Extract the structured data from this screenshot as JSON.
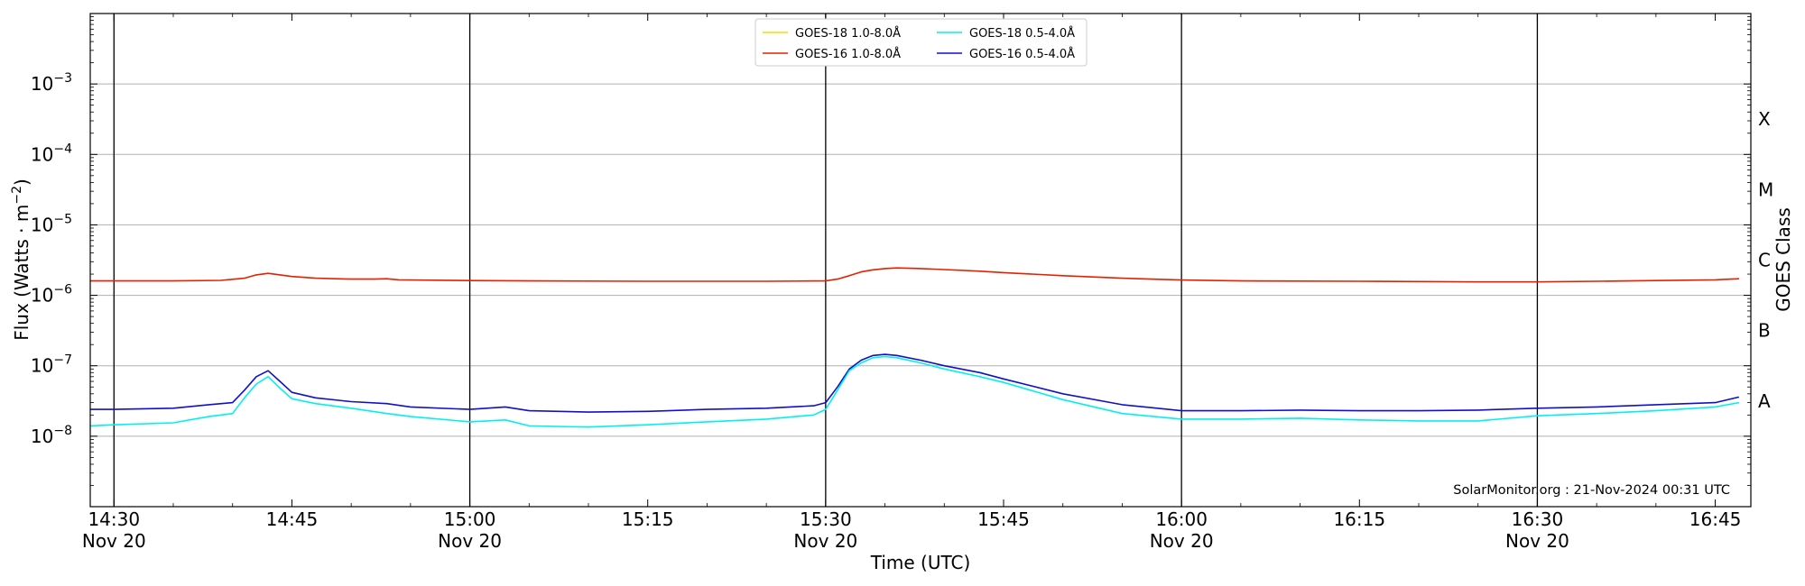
{
  "chart_data": {
    "type": "line",
    "title": "",
    "xlabel": "Time (UTC)",
    "ylabel": "Flux (Watts · m",
    "ylabel_sup": "−2",
    "ylabel_tail": ")",
    "right_label": "GOES Class",
    "y_scale": "log",
    "ylim": [
      1e-09,
      0.01
    ],
    "xlim": [
      "2024-11-20 14:28",
      "2024-11-20 16:48"
    ],
    "grid": "horizontal at decades 1e-8..1e-3",
    "y_ticks": [
      {
        "value": 1e-08,
        "base": "10",
        "exp": "−8"
      },
      {
        "value": 1e-07,
        "base": "10",
        "exp": "−7"
      },
      {
        "value": 1e-06,
        "base": "10",
        "exp": "−6"
      },
      {
        "value": 1e-05,
        "base": "10",
        "exp": "−5"
      },
      {
        "value": 0.0001,
        "base": "10",
        "exp": "−4"
      },
      {
        "value": 0.001,
        "base": "10",
        "exp": "−3"
      }
    ],
    "x_ticks": [
      {
        "time": "14:30",
        "label": "14:30",
        "sub": "Nov 20",
        "vline": true
      },
      {
        "time": "14:45",
        "label": "14:45",
        "sub": "",
        "vline": false
      },
      {
        "time": "15:00",
        "label": "15:00",
        "sub": "Nov 20",
        "vline": true
      },
      {
        "time": "15:15",
        "label": "15:15",
        "sub": "",
        "vline": false
      },
      {
        "time": "15:30",
        "label": "15:30",
        "sub": "Nov 20",
        "vline": true
      },
      {
        "time": "15:45",
        "label": "15:45",
        "sub": "",
        "vline": false
      },
      {
        "time": "16:00",
        "label": "16:00",
        "sub": "Nov 20",
        "vline": true
      },
      {
        "time": "16:15",
        "label": "16:15",
        "sub": "",
        "vline": false
      },
      {
        "time": "16:30",
        "label": "16:30",
        "sub": "Nov 20",
        "vline": true
      },
      {
        "time": "16:45",
        "label": "16:45",
        "sub": "",
        "vline": false
      }
    ],
    "goes_classes": [
      {
        "label": "A",
        "value": 3.16e-08
      },
      {
        "label": "B",
        "value": 3.16e-07
      },
      {
        "label": "C",
        "value": 3.16e-06
      },
      {
        "label": "M",
        "value": 3.16e-05
      },
      {
        "label": "X",
        "value": 0.000316
      }
    ],
    "legend_position": "top-center",
    "legend": [
      {
        "name": "GOES-18 1.0-8.0Å",
        "color": "#ffd700"
      },
      {
        "name": "GOES-16 1.0-8.0Å",
        "color": "#e52000"
      },
      {
        "name": "GOES-18 0.5-4.0Å",
        "color": "#00f0f0"
      },
      {
        "name": "GOES-16 0.5-4.0Å",
        "color": "#1010cc"
      }
    ],
    "series": [
      {
        "name": "GOES-16 1.0-8.0Å",
        "color": "#e52000",
        "points": [
          [
            "14:28",
            1.6e-06
          ],
          [
            "14:35",
            1.6e-06
          ],
          [
            "14:39",
            1.63e-06
          ],
          [
            "14:41",
            1.75e-06
          ],
          [
            "14:42",
            1.95e-06
          ],
          [
            "14:43",
            2.05e-06
          ],
          [
            "14:44",
            1.95e-06
          ],
          [
            "14:45",
            1.85e-06
          ],
          [
            "14:47",
            1.75e-06
          ],
          [
            "14:50",
            1.7e-06
          ],
          [
            "14:52",
            1.7e-06
          ],
          [
            "14:53",
            1.72e-06
          ],
          [
            "14:54",
            1.66e-06
          ],
          [
            "15:00",
            1.62e-06
          ],
          [
            "15:05",
            1.6e-06
          ],
          [
            "15:15",
            1.58e-06
          ],
          [
            "15:25",
            1.58e-06
          ],
          [
            "15:30",
            1.6e-06
          ],
          [
            "15:31",
            1.7e-06
          ],
          [
            "15:32",
            1.9e-06
          ],
          [
            "15:33",
            2.15e-06
          ],
          [
            "15:34",
            2.3e-06
          ],
          [
            "15:35",
            2.4e-06
          ],
          [
            "15:36",
            2.45e-06
          ],
          [
            "15:38",
            2.4e-06
          ],
          [
            "15:40",
            2.32e-06
          ],
          [
            "15:43",
            2.2e-06
          ],
          [
            "15:45",
            2.1e-06
          ],
          [
            "15:50",
            1.9e-06
          ],
          [
            "15:55",
            1.75e-06
          ],
          [
            "16:00",
            1.65e-06
          ],
          [
            "16:05",
            1.6e-06
          ],
          [
            "16:15",
            1.58e-06
          ],
          [
            "16:25",
            1.55e-06
          ],
          [
            "16:30",
            1.55e-06
          ],
          [
            "16:35",
            1.58e-06
          ],
          [
            "16:40",
            1.62e-06
          ],
          [
            "16:45",
            1.66e-06
          ],
          [
            "16:47",
            1.72e-06
          ]
        ]
      },
      {
        "name": "GOES-16 0.5-4.0Å",
        "color": "#1010cc",
        "points": [
          [
            "14:28",
            2.4e-08
          ],
          [
            "14:30",
            2.4e-08
          ],
          [
            "14:35",
            2.5e-08
          ],
          [
            "14:38",
            2.8e-08
          ],
          [
            "14:40",
            3e-08
          ],
          [
            "14:41",
            4.5e-08
          ],
          [
            "14:42",
            7e-08
          ],
          [
            "14:43",
            8.5e-08
          ],
          [
            "14:44",
            6e-08
          ],
          [
            "14:45",
            4.2e-08
          ],
          [
            "14:47",
            3.5e-08
          ],
          [
            "14:50",
            3.1e-08
          ],
          [
            "14:53",
            2.9e-08
          ],
          [
            "14:55",
            2.6e-08
          ],
          [
            "15:00",
            2.4e-08
          ],
          [
            "15:03",
            2.6e-08
          ],
          [
            "15:05",
            2.3e-08
          ],
          [
            "15:10",
            2.2e-08
          ],
          [
            "15:15",
            2.25e-08
          ],
          [
            "15:20",
            2.4e-08
          ],
          [
            "15:25",
            2.5e-08
          ],
          [
            "15:29",
            2.7e-08
          ],
          [
            "15:30",
            3e-08
          ],
          [
            "15:31",
            5e-08
          ],
          [
            "15:32",
            9e-08
          ],
          [
            "15:33",
            1.2e-07
          ],
          [
            "15:34",
            1.4e-07
          ],
          [
            "15:35",
            1.45e-07
          ],
          [
            "15:36",
            1.4e-07
          ],
          [
            "15:38",
            1.2e-07
          ],
          [
            "15:40",
            1e-07
          ],
          [
            "15:43",
            8e-08
          ],
          [
            "15:45",
            6.5e-08
          ],
          [
            "15:50",
            4e-08
          ],
          [
            "15:55",
            2.8e-08
          ],
          [
            "16:00",
            2.3e-08
          ],
          [
            "16:05",
            2.3e-08
          ],
          [
            "16:10",
            2.35e-08
          ],
          [
            "16:15",
            2.3e-08
          ],
          [
            "16:20",
            2.3e-08
          ],
          [
            "16:25",
            2.35e-08
          ],
          [
            "16:30",
            2.5e-08
          ],
          [
            "16:35",
            2.6e-08
          ],
          [
            "16:40",
            2.8e-08
          ],
          [
            "16:45",
            3e-08
          ],
          [
            "16:47",
            3.6e-08
          ]
        ]
      },
      {
        "name": "GOES-18 0.5-4.0Å",
        "color": "#00f0f0",
        "points": [
          [
            "14:28",
            1.4e-08
          ],
          [
            "14:30",
            1.45e-08
          ],
          [
            "14:35",
            1.55e-08
          ],
          [
            "14:38",
            1.9e-08
          ],
          [
            "14:40",
            2.1e-08
          ],
          [
            "14:41",
            3.5e-08
          ],
          [
            "14:42",
            5.5e-08
          ],
          [
            "14:43",
            7e-08
          ],
          [
            "14:44",
            4.8e-08
          ],
          [
            "14:45",
            3.4e-08
          ],
          [
            "14:47",
            2.9e-08
          ],
          [
            "14:50",
            2.5e-08
          ],
          [
            "14:53",
            2.1e-08
          ],
          [
            "14:55",
            1.9e-08
          ],
          [
            "15:00",
            1.6e-08
          ],
          [
            "15:03",
            1.7e-08
          ],
          [
            "15:05",
            1.4e-08
          ],
          [
            "15:10",
            1.35e-08
          ],
          [
            "15:15",
            1.45e-08
          ],
          [
            "15:20",
            1.6e-08
          ],
          [
            "15:25",
            1.75e-08
          ],
          [
            "15:29",
            2e-08
          ],
          [
            "15:30",
            2.4e-08
          ],
          [
            "15:31",
            4.5e-08
          ],
          [
            "15:32",
            8.5e-08
          ],
          [
            "15:33",
            1.1e-07
          ],
          [
            "15:34",
            1.3e-07
          ],
          [
            "15:35",
            1.35e-07
          ],
          [
            "15:36",
            1.3e-07
          ],
          [
            "15:38",
            1.1e-07
          ],
          [
            "15:40",
            9e-08
          ],
          [
            "15:43",
            7e-08
          ],
          [
            "15:45",
            5.8e-08
          ],
          [
            "15:50",
            3.3e-08
          ],
          [
            "15:55",
            2.1e-08
          ],
          [
            "16:00",
            1.75e-08
          ],
          [
            "16:05",
            1.75e-08
          ],
          [
            "16:10",
            1.8e-08
          ],
          [
            "16:15",
            1.7e-08
          ],
          [
            "16:20",
            1.65e-08
          ],
          [
            "16:25",
            1.65e-08
          ],
          [
            "16:30",
            1.95e-08
          ],
          [
            "16:35",
            2.1e-08
          ],
          [
            "16:40",
            2.3e-08
          ],
          [
            "16:45",
            2.6e-08
          ],
          [
            "16:47",
            3e-08
          ]
        ]
      }
    ],
    "watermark": "SolarMonitor.org : 21-Nov-2024 00:31 UTC"
  }
}
